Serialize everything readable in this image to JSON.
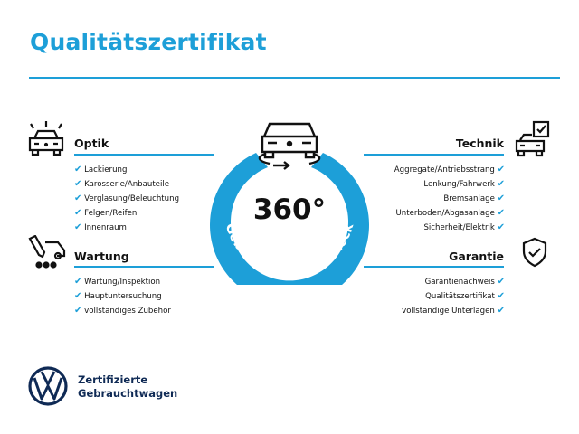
{
  "title": "Qualitätszertifikat",
  "accent": "#1d9fd8",
  "center": {
    "number": "360°",
    "ring_text": "Gebrauchtwagen-Check",
    "icon": "car-360-icon"
  },
  "sections": {
    "optik": {
      "heading": "Optik",
      "icon": "car-lights-icon",
      "items": [
        "Lackierung",
        "Karosserie/Anbauteile",
        "Verglasung/Beleuchtung",
        "Felgen/Reifen",
        "Innenraum"
      ]
    },
    "wartung": {
      "heading": "Wartung",
      "icon": "service-van-icon",
      "items": [
        "Wartung/Inspektion",
        "Hauptuntersuchung",
        "vollständiges Zubehör"
      ]
    },
    "technik": {
      "heading": "Technik",
      "icon": "car-checklist-icon",
      "items": [
        "Aggregate/Antriebsstrang",
        "Lenkung/Fahrwerk",
        "Bremsanlage",
        "Unterboden/Abgasanlage",
        "Sicherheit/Elektrik"
      ]
    },
    "garantie": {
      "heading": "Garantie",
      "icon": "shield-check-icon",
      "items": [
        "Garantienachweis",
        "Qualitätszertifikat",
        "vollständige Unterlagen"
      ]
    }
  },
  "footer": {
    "line1": "Zertifizierte",
    "line2": "Gebrauchtwagen",
    "logo": "VW"
  }
}
